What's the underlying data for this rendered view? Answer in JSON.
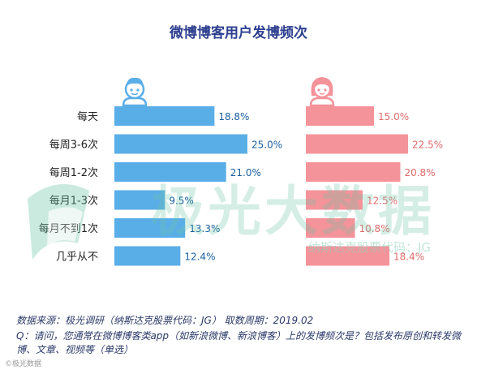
{
  "chart_data": {
    "type": "bar",
    "title": "微博博客用户发博频次",
    "categories": [
      "每天",
      "每周3-6次",
      "每周1-2次",
      "每月1-3次",
      "每月不到1次",
      "几乎从不"
    ],
    "series": [
      {
        "values": [
          18.8,
          25.0,
          21.0,
          9.5,
          13.3,
          12.4
        ],
        "labels": [
          "18.8%",
          "25.0%",
          "21.0%",
          "9.5%",
          "13.3%",
          "12.4%"
        ],
        "color": "#5aaee8",
        "icon": "male-user-icon"
      },
      {
        "values": [
          15.0,
          22.5,
          20.8,
          12.5,
          10.8,
          18.4
        ],
        "labels": [
          "15.0%",
          "22.5%",
          "20.8%",
          "12.5%",
          "10.8%",
          "18.4%"
        ],
        "color": "#f4939a",
        "icon": "female-user-icon"
      }
    ],
    "xlim": [
      0,
      25
    ],
    "grid": false
  },
  "watermark": {
    "main": "极光大数据",
    "sub": "纳斯达克股票代码：JG",
    "bottom": "©极光数据"
  },
  "footer": {
    "source": "数据来源：极光调研（纳斯达克股票代码：JG） 取数周期：2019.02",
    "question": "Q：请问，您通常在微博博客类app（如新浪微博、新浪博客）上的发博频次是？包括发布原创和转发微博、文章、视频等（单选）"
  }
}
